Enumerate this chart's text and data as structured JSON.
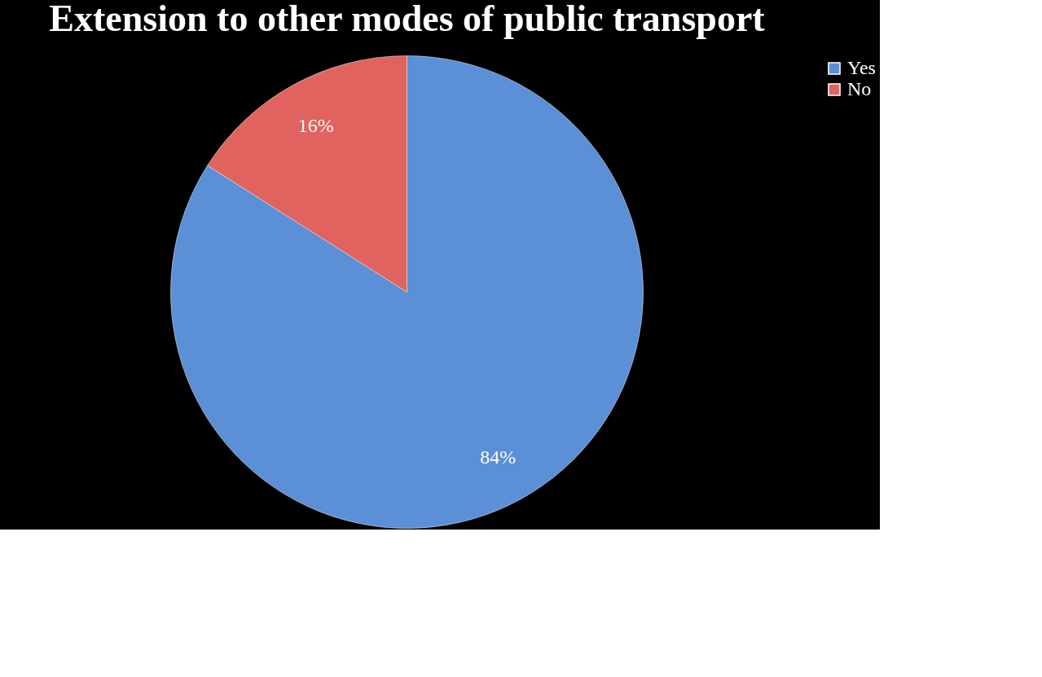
{
  "chart_data": {
    "type": "pie",
    "title": "Extension to other modes of public transport",
    "categories": [
      "Yes",
      "No"
    ],
    "values": [
      84,
      16
    ],
    "colors": [
      "#5b8fd6",
      "#e0635f"
    ],
    "value_labels": [
      "84%",
      "16%"
    ],
    "legend": "right"
  }
}
